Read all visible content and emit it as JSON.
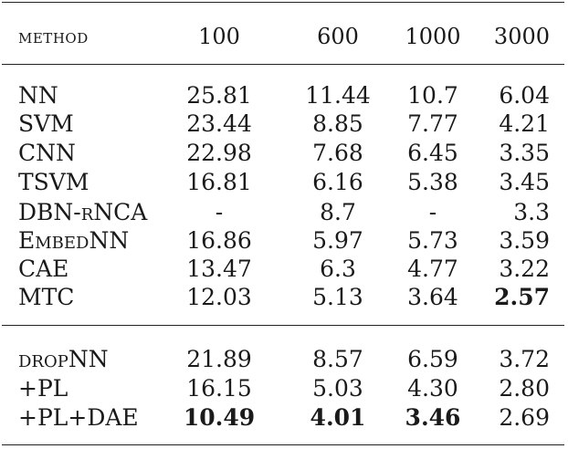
{
  "table": {
    "header": {
      "method": "METHOD",
      "cols": [
        "100",
        "600",
        "1000",
        "3000"
      ]
    },
    "group1": [
      {
        "method": "NN",
        "values": [
          "25.81",
          "11.44",
          "10.7",
          "6.04"
        ],
        "bold": [
          false,
          false,
          false,
          false
        ]
      },
      {
        "method": "SVM",
        "values": [
          "23.44",
          "8.85",
          "7.77",
          "4.21"
        ],
        "bold": [
          false,
          false,
          false,
          false
        ]
      },
      {
        "method": "CNN",
        "values": [
          "22.98",
          "7.68",
          "6.45",
          "3.35"
        ],
        "bold": [
          false,
          false,
          false,
          false
        ]
      },
      {
        "method": "TSVM",
        "values": [
          "16.81",
          "6.16",
          "5.38",
          "3.45"
        ],
        "bold": [
          false,
          false,
          false,
          false
        ]
      },
      {
        "method": "DBN-rNCA",
        "values": [
          "-",
          "8.7",
          "-",
          "3.3"
        ],
        "bold": [
          false,
          false,
          false,
          false
        ]
      },
      {
        "method": "EmbedNN",
        "values": [
          "16.86",
          "5.97",
          "5.73",
          "3.59"
        ],
        "bold": [
          false,
          false,
          false,
          false
        ]
      },
      {
        "method": "CAE",
        "values": [
          "13.47",
          "6.3",
          "4.77",
          "3.22"
        ],
        "bold": [
          false,
          false,
          false,
          false
        ]
      },
      {
        "method": "MTC",
        "values": [
          "12.03",
          "5.13",
          "3.64",
          "2.57"
        ],
        "bold": [
          false,
          false,
          false,
          true
        ]
      }
    ],
    "group2": [
      {
        "method": "dropNN",
        "values": [
          "21.89",
          "8.57",
          "6.59",
          "3.72"
        ],
        "bold": [
          false,
          false,
          false,
          false
        ]
      },
      {
        "method": "+PL",
        "values": [
          "16.15",
          "5.03",
          "4.30",
          "2.80"
        ],
        "bold": [
          false,
          false,
          false,
          false
        ]
      },
      {
        "method": "+PL+DAE",
        "values": [
          "10.49",
          "4.01",
          "3.46",
          "2.69"
        ],
        "bold": [
          true,
          true,
          true,
          false
        ]
      }
    ]
  }
}
